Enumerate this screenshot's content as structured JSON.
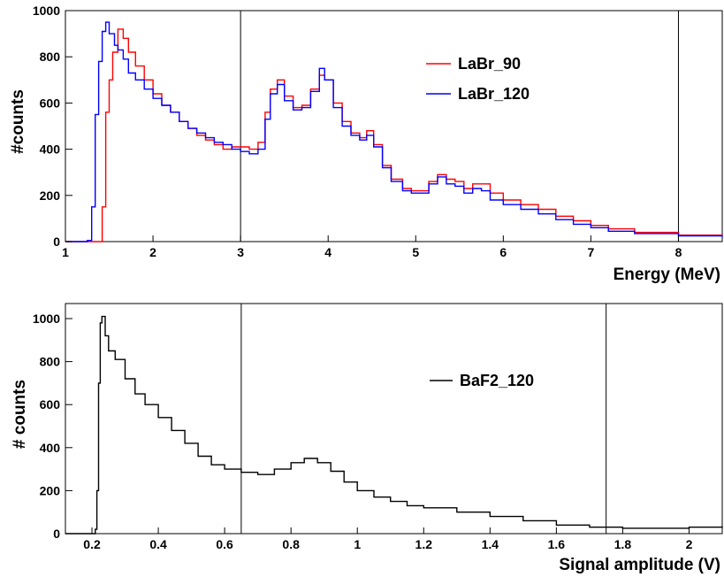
{
  "chart_data": [
    {
      "type": "line",
      "xlabel": "Energy (MeV)",
      "ylabel": "#counts",
      "xlim": [
        1,
        8.5
      ],
      "ylim": [
        0,
        1000
      ],
      "xticks": [
        {
          "v": 1,
          "label": "1"
        },
        {
          "v": 2,
          "label": "2"
        },
        {
          "v": 3,
          "label": "3"
        },
        {
          "v": 4,
          "label": "4"
        },
        {
          "v": 5,
          "label": "5"
        },
        {
          "v": 6,
          "label": "6"
        },
        {
          "v": 7,
          "label": "7"
        },
        {
          "v": 8,
          "label": "8"
        }
      ],
      "yticks": [
        {
          "v": 0,
          "label": "0"
        },
        {
          "v": 200,
          "label": "200"
        },
        {
          "v": 400,
          "label": "400"
        },
        {
          "v": 600,
          "label": "600"
        },
        {
          "v": 800,
          "label": "800"
        },
        {
          "v": 1000,
          "label": "1000"
        }
      ],
      "vlines": [
        3,
        8
      ],
      "legend": "upper-middle",
      "series": [
        {
          "name": "LaBr_90",
          "color": "#ff0000",
          "points": [
            [
              1.0,
              0
            ],
            [
              1.3,
              0
            ],
            [
              1.38,
              0
            ],
            [
              1.42,
              150
            ],
            [
              1.46,
              560
            ],
            [
              1.5,
              700
            ],
            [
              1.54,
              820
            ],
            [
              1.6,
              920
            ],
            [
              1.66,
              880
            ],
            [
              1.72,
              820
            ],
            [
              1.8,
              760
            ],
            [
              1.9,
              700
            ],
            [
              2.0,
              640
            ],
            [
              2.1,
              590
            ],
            [
              2.2,
              560
            ],
            [
              2.3,
              520
            ],
            [
              2.4,
              490
            ],
            [
              2.5,
              460
            ],
            [
              2.6,
              440
            ],
            [
              2.7,
              420
            ],
            [
              2.8,
              400
            ],
            [
              2.9,
              410
            ],
            [
              3.0,
              410
            ],
            [
              3.1,
              400
            ],
            [
              3.2,
              430
            ],
            [
              3.28,
              560
            ],
            [
              3.34,
              660
            ],
            [
              3.42,
              700
            ],
            [
              3.5,
              630
            ],
            [
              3.6,
              580
            ],
            [
              3.7,
              590
            ],
            [
              3.8,
              660
            ],
            [
              3.9,
              720
            ],
            [
              3.96,
              700
            ],
            [
              4.06,
              600
            ],
            [
              4.16,
              520
            ],
            [
              4.26,
              470
            ],
            [
              4.36,
              450
            ],
            [
              4.44,
              480
            ],
            [
              4.52,
              420
            ],
            [
              4.62,
              330
            ],
            [
              4.72,
              270
            ],
            [
              4.85,
              230
            ],
            [
              4.95,
              220
            ],
            [
              5.05,
              220
            ],
            [
              5.15,
              260
            ],
            [
              5.25,
              290
            ],
            [
              5.35,
              270
            ],
            [
              5.45,
              260
            ],
            [
              5.55,
              230
            ],
            [
              5.65,
              250
            ],
            [
              5.75,
              250
            ],
            [
              5.85,
              210
            ],
            [
              6.0,
              180
            ],
            [
              6.2,
              160
            ],
            [
              6.4,
              140
            ],
            [
              6.6,
              110
            ],
            [
              6.8,
              90
            ],
            [
              7.0,
              70
            ],
            [
              7.2,
              55
            ],
            [
              7.5,
              40
            ],
            [
              8.0,
              28
            ],
            [
              8.5,
              25
            ]
          ]
        },
        {
          "name": "LaBr_120",
          "color": "#0000ff",
          "points": [
            [
              1.0,
              0
            ],
            [
              1.25,
              5
            ],
            [
              1.3,
              150
            ],
            [
              1.34,
              550
            ],
            [
              1.38,
              780
            ],
            [
              1.42,
              910
            ],
            [
              1.46,
              950
            ],
            [
              1.5,
              900
            ],
            [
              1.56,
              850
            ],
            [
              1.6,
              830
            ],
            [
              1.66,
              790
            ],
            [
              1.72,
              730
            ],
            [
              1.8,
              700
            ],
            [
              1.9,
              660
            ],
            [
              2.0,
              620
            ],
            [
              2.1,
              590
            ],
            [
              2.2,
              560
            ],
            [
              2.3,
              520
            ],
            [
              2.4,
              490
            ],
            [
              2.5,
              470
            ],
            [
              2.6,
              450
            ],
            [
              2.7,
              430
            ],
            [
              2.8,
              420
            ],
            [
              2.9,
              400
            ],
            [
              3.0,
              390
            ],
            [
              3.1,
              380
            ],
            [
              3.2,
              400
            ],
            [
              3.28,
              530
            ],
            [
              3.34,
              640
            ],
            [
              3.42,
              680
            ],
            [
              3.5,
              610
            ],
            [
              3.6,
              570
            ],
            [
              3.7,
              580
            ],
            [
              3.8,
              650
            ],
            [
              3.9,
              750
            ],
            [
              3.96,
              700
            ],
            [
              4.06,
              580
            ],
            [
              4.16,
              500
            ],
            [
              4.26,
              460
            ],
            [
              4.36,
              440
            ],
            [
              4.44,
              460
            ],
            [
              4.52,
              410
            ],
            [
              4.62,
              320
            ],
            [
              4.72,
              260
            ],
            [
              4.85,
              220
            ],
            [
              4.95,
              210
            ],
            [
              5.05,
              210
            ],
            [
              5.15,
              250
            ],
            [
              5.25,
              280
            ],
            [
              5.35,
              250
            ],
            [
              5.45,
              240
            ],
            [
              5.55,
              210
            ],
            [
              5.65,
              230
            ],
            [
              5.75,
              220
            ],
            [
              5.85,
              180
            ],
            [
              6.0,
              160
            ],
            [
              6.2,
              140
            ],
            [
              6.4,
              120
            ],
            [
              6.6,
              95
            ],
            [
              6.8,
              75
            ],
            [
              7.0,
              60
            ],
            [
              7.2,
              45
            ],
            [
              7.5,
              35
            ],
            [
              8.0,
              25
            ],
            [
              8.5,
              20
            ]
          ]
        }
      ]
    },
    {
      "type": "line",
      "xlabel": "Signal amplitude (V)",
      "ylabel": "# counts",
      "xlim": [
        0.12,
        2.1
      ],
      "ylim": [
        0,
        1070
      ],
      "xticks": [
        {
          "v": 0.2,
          "label": "0.2"
        },
        {
          "v": 0.4,
          "label": "0.4"
        },
        {
          "v": 0.6,
          "label": "0.6"
        },
        {
          "v": 0.8,
          "label": "0.8"
        },
        {
          "v": 1.0,
          "label": "1"
        },
        {
          "v": 1.2,
          "label": "1.2"
        },
        {
          "v": 1.4,
          "label": "1.4"
        },
        {
          "v": 1.6,
          "label": "1.6"
        },
        {
          "v": 1.8,
          "label": "1.8"
        },
        {
          "v": 2.0,
          "label": "2"
        }
      ],
      "yticks": [
        {
          "v": 0,
          "label": "0"
        },
        {
          "v": 200,
          "label": "200"
        },
        {
          "v": 400,
          "label": "400"
        },
        {
          "v": 600,
          "label": "600"
        },
        {
          "v": 800,
          "label": "800"
        },
        {
          "v": 1000,
          "label": "1000"
        }
      ],
      "vlines": [
        0.65,
        1.75
      ],
      "legend": "upper-middle",
      "series": [
        {
          "name": "BaF2_120",
          "color": "#000000",
          "points": [
            [
              0.12,
              0
            ],
            [
              0.205,
              0
            ],
            [
              0.21,
              20
            ],
            [
              0.215,
              200
            ],
            [
              0.22,
              700
            ],
            [
              0.225,
              980
            ],
            [
              0.23,
              1010
            ],
            [
              0.24,
              920
            ],
            [
              0.25,
              850
            ],
            [
              0.27,
              810
            ],
            [
              0.3,
              720
            ],
            [
              0.33,
              650
            ],
            [
              0.36,
              600
            ],
            [
              0.4,
              540
            ],
            [
              0.44,
              480
            ],
            [
              0.48,
              420
            ],
            [
              0.52,
              360
            ],
            [
              0.56,
              320
            ],
            [
              0.6,
              300
            ],
            [
              0.65,
              285
            ],
            [
              0.7,
              275
            ],
            [
              0.75,
              300
            ],
            [
              0.8,
              330
            ],
            [
              0.84,
              350
            ],
            [
              0.88,
              330
            ],
            [
              0.92,
              290
            ],
            [
              0.96,
              240
            ],
            [
              1.0,
              200
            ],
            [
              1.05,
              170
            ],
            [
              1.1,
              150
            ],
            [
              1.15,
              130
            ],
            [
              1.2,
              120
            ],
            [
              1.3,
              100
            ],
            [
              1.4,
              80
            ],
            [
              1.5,
              60
            ],
            [
              1.6,
              40
            ],
            [
              1.7,
              30
            ],
            [
              1.8,
              25
            ],
            [
              1.9,
              25
            ],
            [
              2.0,
              30
            ],
            [
              2.1,
              35
            ]
          ]
        }
      ]
    }
  ]
}
